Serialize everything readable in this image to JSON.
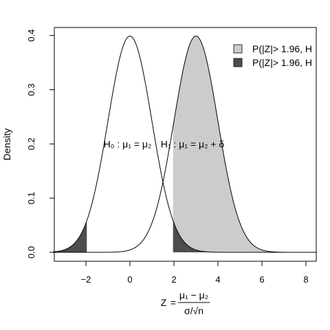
{
  "chart_data": {
    "type": "area",
    "xlabel": "Z",
    "xlabel_fraction": {
      "numerator": "μ₁ − μ₂",
      "denominator": "σ/√n"
    },
    "ylabel": "Density",
    "xlim": [
      -3.5,
      8.5
    ],
    "ylim": [
      -0.015,
      0.415
    ],
    "x_ticks": [
      -2,
      0,
      2,
      4,
      6,
      8
    ],
    "y_ticks": [
      0.0,
      0.1,
      0.2,
      0.3,
      0.4
    ],
    "grid": false,
    "legend_position": "top-right",
    "series": [
      {
        "name": "H0",
        "distribution": "normal",
        "mean": 0,
        "sd": 1,
        "curve_color": "#000000"
      },
      {
        "name": "H1",
        "distribution": "normal",
        "mean": 3,
        "sd": 1,
        "curve_color": "#000000"
      }
    ],
    "shaded_regions": [
      {
        "under": "H1",
        "from": 1.96,
        "to": 8.5,
        "color": "#cccccc"
      },
      {
        "under": "H0",
        "from": -3.5,
        "to": -1.96,
        "color": "#4d4d4d"
      },
      {
        "under": "H0",
        "from": 1.96,
        "to": 8.5,
        "color": "#4d4d4d"
      }
    ],
    "legend": [
      {
        "label": "P(|Z|> 1.96, H",
        "color": "#cccccc"
      },
      {
        "label": "P(|Z|> 1.96, H",
        "color": "#4d4d4d"
      }
    ],
    "annotations": [
      {
        "label": "H₀ :  μ₁ = μ₂",
        "x": -1.2,
        "y": 0.2
      },
      {
        "label": "H₁ :  μ₁ = μ₂ + δ",
        "x": 1.4,
        "y": 0.2
      }
    ]
  }
}
